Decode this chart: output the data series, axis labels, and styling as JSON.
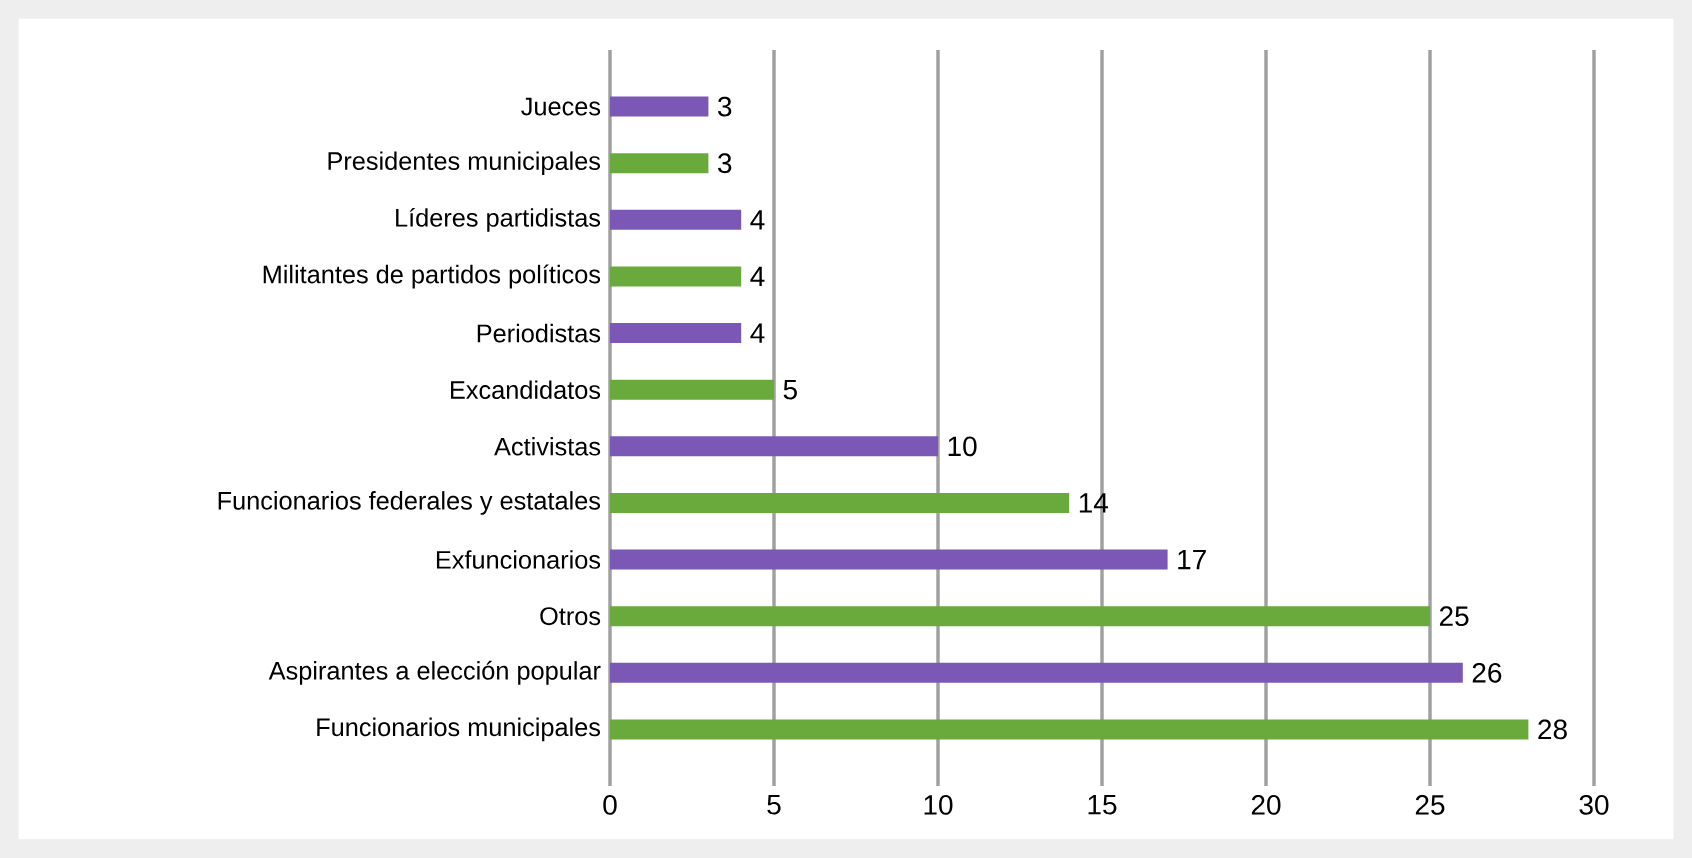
{
  "chart_data": {
    "type": "bar",
    "orientation": "horizontal",
    "categories": [
      "Jueces",
      "Presidentes municipales",
      "Líderes partidistas",
      "Militantes de partidos políticos",
      "Periodistas",
      "Excandidatos",
      "Activistas",
      "Funcionarios federales y estatales",
      "Exfuncionarios",
      "Otros",
      "Aspirantes a elección popular",
      "Funcionarios municipales"
    ],
    "values": [
      3,
      3,
      4,
      4,
      4,
      5,
      10,
      14,
      17,
      25,
      26,
      28
    ],
    "colors": [
      "#7b58b5",
      "#6aaa3c",
      "#7b58b5",
      "#6aaa3c",
      "#7b58b5",
      "#6aaa3c",
      "#7b58b5",
      "#6aaa3c",
      "#7b58b5",
      "#6aaa3c",
      "#7b58b5",
      "#6aaa3c"
    ],
    "xlim": [
      0,
      30
    ],
    "xticks": [
      0,
      5,
      10,
      15,
      20,
      25,
      30
    ],
    "grid": "x",
    "data_labels": true
  }
}
